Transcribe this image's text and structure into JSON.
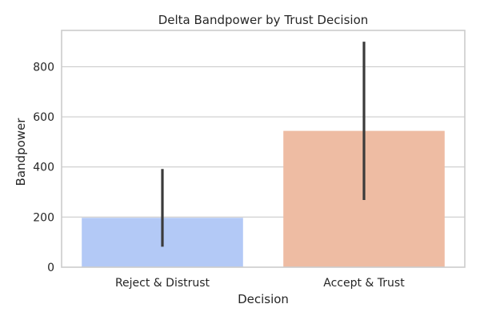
{
  "chart_data": {
    "type": "bar",
    "title": "Delta Bandpower by Trust Decision",
    "xlabel": "Decision",
    "ylabel": "Bandpower",
    "categories": [
      "Reject & Distrust",
      "Accept & Trust"
    ],
    "values": [
      197,
      544
    ],
    "error_bars": [
      {
        "low": 82,
        "high": 392
      },
      {
        "low": 268,
        "high": 900
      }
    ],
    "ylim": [
      0,
      945
    ],
    "yticks": [
      0,
      200,
      400,
      600,
      800
    ],
    "ytick_labels": [
      "0",
      "200",
      "400",
      "600",
      "800"
    ],
    "grid": true,
    "colors": {
      "bars": [
        "#b3c9f6",
        "#eebca3"
      ],
      "error_bar": "#3b3b3b",
      "grid": "#cccccc",
      "frame": "#cccccc",
      "text": "#262626"
    }
  }
}
